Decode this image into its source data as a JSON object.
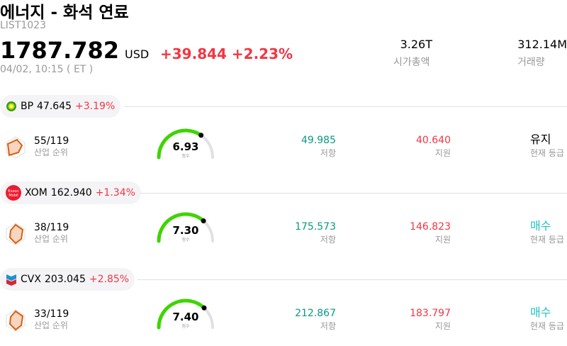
{
  "header": {
    "title": "에너지 - 화석 연료",
    "code": "LIST1023",
    "price": "1787.782",
    "currency": "USD",
    "change": "+39.844 +2.23%",
    "time": "04/02, 10:15 ( ET )",
    "market_cap": {
      "value": "3.26T",
      "label": "시가총액"
    },
    "volume": {
      "value": "312.14M",
      "label": "거래량"
    }
  },
  "labels": {
    "rank": "산업 순위",
    "score": "점수",
    "resistance": "저항",
    "support": "지원",
    "rating": "현재 등급"
  },
  "colors": {
    "up": "#f23645",
    "resistance": "#089981",
    "gauge": "#3fd400",
    "buy": "#22c0c0"
  },
  "stocks": [
    {
      "ticker": "BP",
      "price": "47.645",
      "change": "+3.19%",
      "logo": "bp-helios-icon",
      "rank": "55/119",
      "score": 6.93,
      "score_text": "6.93",
      "resistance": "49.985",
      "support": "40.640",
      "rating": "유지"
    },
    {
      "ticker": "XOM",
      "price": "162.940",
      "change": "+1.34%",
      "logo": "exxonmobil-icon",
      "logo_text": "Exxon Mobil",
      "rank": "38/119",
      "score": 7.3,
      "score_text": "7.30",
      "resistance": "175.573",
      "support": "146.823",
      "rating": "매수"
    },
    {
      "ticker": "CVX",
      "price": "203.045",
      "change": "+2.85%",
      "logo": "chevron-icon",
      "rank": "33/119",
      "score": 7.4,
      "score_text": "7.40",
      "resistance": "212.867",
      "support": "183.797",
      "rating": "매수"
    }
  ]
}
